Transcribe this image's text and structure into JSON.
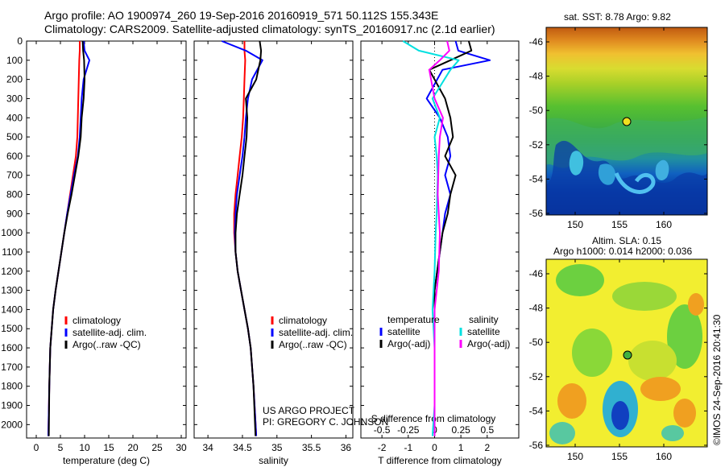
{
  "header": {
    "line1": "Argo profile: AO 1900974_260 19-Sep-2016 20160919_571 50.112S 155.343E",
    "line2": "Climatology: CARS2009. Satellite-adjusted climatology: synTS_20160917.nc (2.1d earlier)"
  },
  "credits": {
    "project": "US ARGO PROJECT",
    "pi": "PI: GREGORY C. JOHNSON",
    "stamp": "©IMOS 24-Sep-2016 20:41:30"
  },
  "maps": {
    "sst_title": "sat. SST: 8.78 Argo: 9.82",
    "sla_title1": "Altim. SLA: 0.15",
    "sla_title2": "Argo h1000: 0.014 h2000: 0.036",
    "lat_ticks": [
      "-46",
      "-48",
      "-50",
      "-52",
      "-54",
      "-56"
    ],
    "lon_ticks": [
      "150",
      "155",
      "160"
    ]
  },
  "chart_data": [
    {
      "type": "line",
      "title": "",
      "xlabel": "temperature (deg C)",
      "ylabel": "",
      "xlim": [
        -2,
        31
      ],
      "ylim": [
        2070,
        0
      ],
      "xticks": [
        0,
        5,
        10,
        15,
        20,
        25,
        30
      ],
      "yticks": [
        0,
        100,
        200,
        300,
        400,
        500,
        600,
        700,
        800,
        900,
        1000,
        1100,
        1200,
        1300,
        1400,
        1500,
        1600,
        1700,
        1800,
        1900,
        2000
      ],
      "legend": "center-left",
      "grid": false,
      "series": [
        {
          "name": "climatology",
          "color": "#ff0000",
          "x": [
            9.0,
            9.0,
            8.9,
            8.8,
            8.7,
            8.6,
            8.5,
            8.2,
            7.6,
            7.0,
            6.4,
            5.8,
            5.2,
            4.6,
            4.0,
            3.5,
            3.2,
            2.9,
            2.7,
            2.5
          ],
          "y": [
            0,
            50,
            100,
            200,
            300,
            400,
            500,
            600,
            700,
            800,
            900,
            1000,
            1100,
            1200,
            1300,
            1400,
            1500,
            1600,
            1800,
            2060
          ]
        },
        {
          "name": "satellite-adj. clim.",
          "color": "#0000ff",
          "x": [
            9.8,
            10.0,
            11.0,
            9.8,
            9.4,
            9.2,
            9.0,
            8.6,
            7.8,
            7.1,
            6.4,
            5.8,
            5.2,
            4.6,
            4.0,
            3.5,
            3.2,
            2.9,
            2.7,
            2.5
          ],
          "y": [
            0,
            50,
            100,
            200,
            300,
            400,
            500,
            600,
            700,
            800,
            900,
            1000,
            1100,
            1200,
            1300,
            1400,
            1500,
            1600,
            1800,
            2060
          ]
        },
        {
          "name": "Argo(..raw -QC)",
          "color": "#000000",
          "x": [
            9.6,
            9.7,
            9.9,
            10.0,
            9.8,
            9.4,
            9.2,
            8.7,
            8.0,
            7.3,
            6.5,
            5.8,
            5.2,
            4.6,
            4.0,
            3.5,
            3.2,
            2.9,
            2.7,
            2.6
          ],
          "y": [
            0,
            50,
            100,
            200,
            300,
            400,
            500,
            600,
            700,
            800,
            900,
            1000,
            1100,
            1200,
            1300,
            1400,
            1500,
            1600,
            1800,
            2060
          ]
        }
      ]
    },
    {
      "type": "line",
      "title": "",
      "xlabel": "salinity",
      "ylabel": "",
      "xlim": [
        33.8,
        36.1
      ],
      "ylim": [
        2070,
        0
      ],
      "xticks": [
        34,
        34.5,
        35,
        35.5,
        36
      ],
      "legend": "center-right",
      "grid": false,
      "series": [
        {
          "name": "climatology",
          "color": "#ff0000",
          "x": [
            34.53,
            34.53,
            34.54,
            34.53,
            34.52,
            34.51,
            34.49,
            34.46,
            34.43,
            34.4,
            34.38,
            34.38,
            34.4,
            34.43,
            34.48,
            34.53,
            34.58,
            34.62,
            34.66,
            34.7
          ],
          "y": [
            0,
            50,
            100,
            200,
            300,
            400,
            500,
            600,
            700,
            800,
            900,
            1000,
            1100,
            1200,
            1300,
            1400,
            1500,
            1600,
            1800,
            2060
          ]
        },
        {
          "name": "satellite-adj. clim.",
          "color": "#0000ff",
          "x": [
            34.2,
            34.55,
            34.79,
            34.64,
            34.58,
            34.55,
            34.53,
            34.5,
            34.46,
            34.42,
            34.4,
            34.39,
            34.4,
            34.43,
            34.48,
            34.53,
            34.58,
            34.62,
            34.66,
            34.7
          ],
          "y": [
            0,
            50,
            100,
            200,
            300,
            400,
            500,
            600,
            700,
            800,
            900,
            1000,
            1100,
            1200,
            1300,
            1400,
            1500,
            1600,
            1800,
            2060
          ]
        },
        {
          "name": "Argo(..raw -QC)",
          "color": "#000000",
          "x": [
            34.75,
            34.77,
            34.76,
            34.7,
            34.55,
            34.57,
            34.56,
            34.53,
            34.5,
            34.46,
            34.42,
            34.4,
            34.4,
            34.43,
            34.48,
            34.53,
            34.58,
            34.62,
            34.66,
            34.69
          ],
          "y": [
            0,
            50,
            100,
            200,
            300,
            400,
            500,
            600,
            700,
            800,
            900,
            1000,
            1100,
            1200,
            1300,
            1400,
            1500,
            1600,
            1800,
            2060
          ]
        }
      ]
    },
    {
      "type": "line",
      "title": "",
      "xlabel": "T difference from climatology",
      "xlabel_top": "S difference from climatology",
      "ylabel": "",
      "xlim": [
        -2.8,
        3.2
      ],
      "xlim_salinity": [
        -0.7,
        0.8
      ],
      "ylim": [
        2070,
        0
      ],
      "xticks": [
        -2,
        -1,
        0,
        1,
        2
      ],
      "xticks_salinity": [
        -0.5,
        -0.25,
        0,
        0.25,
        0.5
      ],
      "legend": "center",
      "legend_groups": [
        "temperature",
        "salinity"
      ],
      "grid": false,
      "series": [
        {
          "name": "satellite",
          "group": "temperature",
          "color": "#0000ff",
          "x": [
            0.8,
            0.9,
            2.1,
            0.3,
            -0.3,
            0.2,
            0.5,
            0.6,
            0.4,
            0.6,
            0.4,
            0.3,
            0.1,
            0.0,
            0.0,
            0.0,
            0.0,
            0.0,
            0.0
          ],
          "y": [
            0,
            50,
            100,
            150,
            300,
            400,
            500,
            600,
            700,
            800,
            900,
            1000,
            1200,
            1300,
            1400,
            1500,
            1600,
            1800,
            2060
          ]
        },
        {
          "name": "Argo(-adj)",
          "group": "temperature",
          "color": "#000000",
          "x": [
            1.3,
            1.4,
            0.6,
            -0.2,
            0.4,
            0.6,
            0.7,
            0.4,
            0.8,
            0.6,
            0.5,
            0.3,
            0.1,
            0.0,
            0.0,
            0.0,
            0.0,
            0.0,
            0.0
          ],
          "y": [
            0,
            50,
            100,
            150,
            300,
            400,
            500,
            600,
            700,
            800,
            900,
            1000,
            1200,
            1300,
            1400,
            1500,
            1600,
            1800,
            2060
          ]
        },
        {
          "name": "satellite",
          "group": "salinity",
          "color": "#00e0e0",
          "x": [
            -0.3,
            -0.15,
            0.23,
            0.15,
            -0.02,
            0.05,
            0.0,
            0.02,
            0.03,
            0.02,
            0.01,
            0.0,
            -0.02,
            0.0,
            0.0,
            0.0,
            -0.02
          ],
          "y": [
            0,
            50,
            100,
            150,
            300,
            400,
            500,
            600,
            700,
            900,
            1000,
            1200,
            1400,
            1600,
            1800,
            1900,
            2060
          ]
        },
        {
          "name": "Argo(-adj)",
          "group": "salinity",
          "color": "#ff00ff",
          "x": [
            0.12,
            0.14,
            0.05,
            -0.05,
            0.0,
            0.08,
            0.05,
            0.04,
            0.03,
            0.05,
            0.04,
            0.0,
            0.0,
            0.0,
            0.0,
            0.0
          ],
          "y": [
            0,
            50,
            100,
            150,
            300,
            400,
            500,
            600,
            800,
            1000,
            1200,
            1400,
            1600,
            1800,
            1900,
            2060
          ]
        }
      ]
    }
  ]
}
